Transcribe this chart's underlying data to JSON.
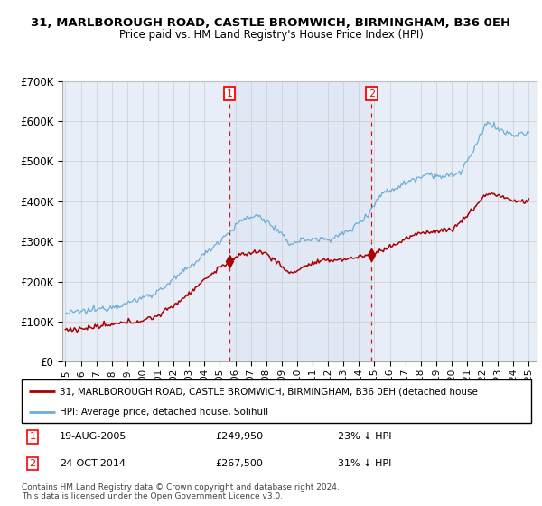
{
  "title_line1": "31, MARLBOROUGH ROAD, CASTLE BROMWICH, BIRMINGHAM, B36 0EH",
  "title_line2": "Price paid vs. HM Land Registry's House Price Index (HPI)",
  "legend_red": "31, MARLBOROUGH ROAD, CASTLE BROMWICH, BIRMINGHAM, B36 0EH (detached house",
  "legend_blue": "HPI: Average price, detached house, Solihull",
  "transaction1_date": "19-AUG-2005",
  "transaction1_price": 249950,
  "transaction1_label": "23% ↓ HPI",
  "transaction2_date": "24-OCT-2014",
  "transaction2_price": 267500,
  "transaction2_label": "31% ↓ HPI",
  "footer": "Contains HM Land Registry data © Crown copyright and database right 2024.\nThis data is licensed under the Open Government Licence v3.0.",
  "ylim": [
    0,
    700000
  ],
  "yticks": [
    0,
    100000,
    200000,
    300000,
    400000,
    500000,
    600000,
    700000
  ],
  "ytick_labels": [
    "£0",
    "£100K",
    "£200K",
    "£300K",
    "£400K",
    "£500K",
    "£600K",
    "£700K"
  ],
  "hpi_color": "#6baed6",
  "price_color": "#aa0000",
  "background_color": "#e8eef8",
  "grid_color": "#cccccc",
  "transaction1_year": 2005.63,
  "transaction2_year": 2014.81,
  "xlim_left": 1994.8,
  "xlim_right": 2025.5
}
